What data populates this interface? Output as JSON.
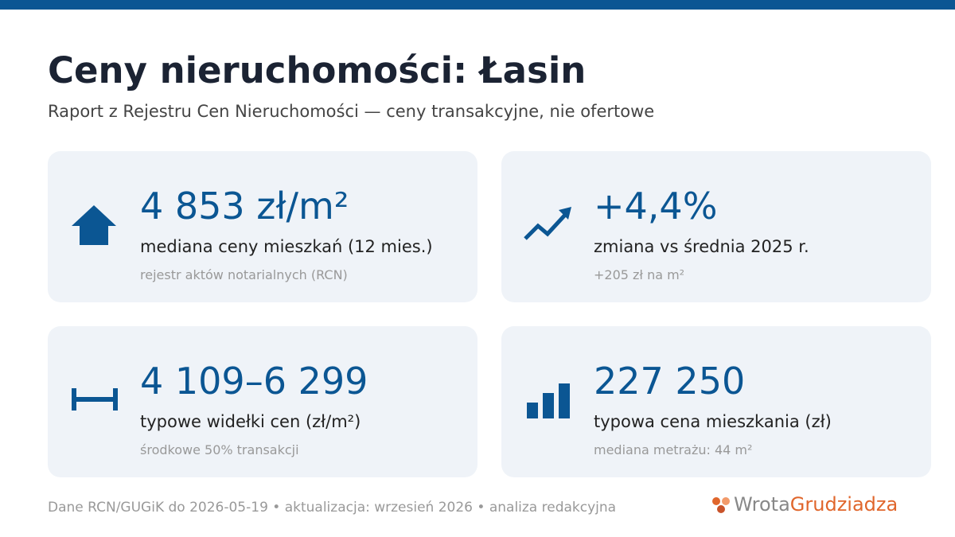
{
  "header": {
    "title": "Ceny nieruchomości: Łasin",
    "subtitle": "Raport z Rejestru Cen Nieruchomości — ceny transakcyjne, nie ofertowe"
  },
  "cards": [
    {
      "value": "4 853 zł/m²",
      "label": "mediana ceny mieszkań (12 mies.)",
      "note": "rejestr aktów notarialnych (RCN)"
    },
    {
      "value": "+4,4%",
      "label": "zmiana vs średnia 2025 r.",
      "note": "+205 zł na m²"
    },
    {
      "value": "4 109–6 299",
      "label": "typowe widełki cen (zł/m²)",
      "note": "środkowe 50% transakcji"
    },
    {
      "value": "227 250",
      "label": "typowa cena mieszkania (zł)",
      "note": "mediana metrażu: 44 m²"
    }
  ],
  "footer": {
    "source": "Dane RCN/GUGiK do 2026-05-19 • aktualizacja: wrzesień 2026 • analiza redakcyjna",
    "logo": {
      "part1": "Wrota",
      "part2": "Grudziadza"
    }
  }
}
